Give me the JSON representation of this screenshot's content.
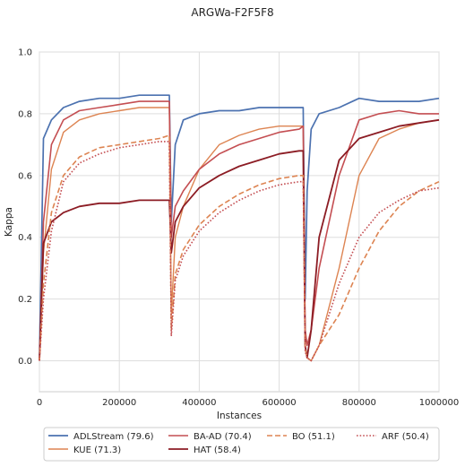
{
  "chart_data": {
    "type": "line",
    "title": "ARGWa-F2F5F8",
    "xlabel": "Instances",
    "ylabel": "Kappa",
    "xlim": [
      0,
      1000000
    ],
    "ylim": [
      -0.1,
      1.0
    ],
    "xticks": [
      0,
      200000,
      400000,
      600000,
      800000,
      1000000
    ],
    "xtick_labels": [
      "0",
      "200000",
      "400000",
      "600000",
      "800000",
      "1000000"
    ],
    "yticks": [
      0.0,
      0.2,
      0.4,
      0.6,
      0.8,
      1.0
    ],
    "ytick_labels": [
      "0.0",
      "0.2",
      "0.4",
      "0.6",
      "0.8",
      "1.0"
    ],
    "grid": true,
    "legend_position": "bottom",
    "legend_columns": 4,
    "x": [
      0,
      10000,
      30000,
      60000,
      100000,
      150000,
      200000,
      250000,
      300000,
      325000,
      330000,
      340000,
      360000,
      400000,
      450000,
      500000,
      550000,
      600000,
      650000,
      660000,
      665000,
      670000,
      680000,
      700000,
      750000,
      800000,
      850000,
      900000,
      950000,
      1000000
    ],
    "series": [
      {
        "name": "ADLStream (79.6)",
        "color": "#4c72b0",
        "dash": "solid",
        "width": 1.7,
        "values": [
          0.0,
          0.72,
          0.78,
          0.82,
          0.84,
          0.85,
          0.85,
          0.86,
          0.86,
          0.86,
          0.45,
          0.7,
          0.78,
          0.8,
          0.81,
          0.81,
          0.82,
          0.82,
          0.82,
          0.82,
          0.2,
          0.55,
          0.75,
          0.8,
          0.82,
          0.85,
          0.84,
          0.84,
          0.84,
          0.85
        ]
      },
      {
        "name": "KUE (71.3)",
        "color": "#dd8452",
        "dash": "solid",
        "width": 1.4,
        "values": [
          0.0,
          0.35,
          0.62,
          0.74,
          0.78,
          0.8,
          0.81,
          0.82,
          0.82,
          0.82,
          0.15,
          0.4,
          0.5,
          0.62,
          0.7,
          0.73,
          0.75,
          0.76,
          0.76,
          0.76,
          0.05,
          0.01,
          0.0,
          0.05,
          0.3,
          0.6,
          0.72,
          0.75,
          0.77,
          0.78
        ]
      },
      {
        "name": "BA-AD (70.4)",
        "color": "#c44e52",
        "dash": "solid",
        "width": 1.6,
        "values": [
          0.0,
          0.45,
          0.7,
          0.78,
          0.81,
          0.82,
          0.83,
          0.84,
          0.84,
          0.84,
          0.4,
          0.5,
          0.55,
          0.62,
          0.67,
          0.7,
          0.72,
          0.74,
          0.75,
          0.76,
          0.1,
          0.05,
          0.1,
          0.3,
          0.6,
          0.78,
          0.8,
          0.81,
          0.8,
          0.8
        ]
      },
      {
        "name": "HAT (58.4)",
        "color": "#8c1c24",
        "dash": "solid",
        "width": 1.8,
        "values": [
          0.0,
          0.38,
          0.45,
          0.48,
          0.5,
          0.51,
          0.51,
          0.52,
          0.52,
          0.52,
          0.35,
          0.45,
          0.5,
          0.56,
          0.6,
          0.63,
          0.65,
          0.67,
          0.68,
          0.68,
          0.05,
          0.01,
          0.1,
          0.4,
          0.65,
          0.72,
          0.74,
          0.76,
          0.77,
          0.78
        ]
      },
      {
        "name": "BO (51.1)",
        "color": "#dd8452",
        "dash": "dashed",
        "width": 1.6,
        "values": [
          0.0,
          0.25,
          0.48,
          0.6,
          0.66,
          0.69,
          0.7,
          0.71,
          0.72,
          0.73,
          0.1,
          0.28,
          0.36,
          0.44,
          0.5,
          0.54,
          0.57,
          0.59,
          0.6,
          0.6,
          0.04,
          0.01,
          0.0,
          0.05,
          0.15,
          0.3,
          0.42,
          0.5,
          0.55,
          0.58
        ]
      },
      {
        "name": "ARF (50.4)",
        "color": "#c44e52",
        "dash": "dotted",
        "width": 1.6,
        "values": [
          0.0,
          0.2,
          0.42,
          0.58,
          0.64,
          0.67,
          0.69,
          0.7,
          0.71,
          0.71,
          0.08,
          0.26,
          0.34,
          0.42,
          0.48,
          0.52,
          0.55,
          0.57,
          0.58,
          0.58,
          0.03,
          0.01,
          0.0,
          0.05,
          0.25,
          0.4,
          0.48,
          0.52,
          0.55,
          0.56
        ]
      }
    ]
  }
}
